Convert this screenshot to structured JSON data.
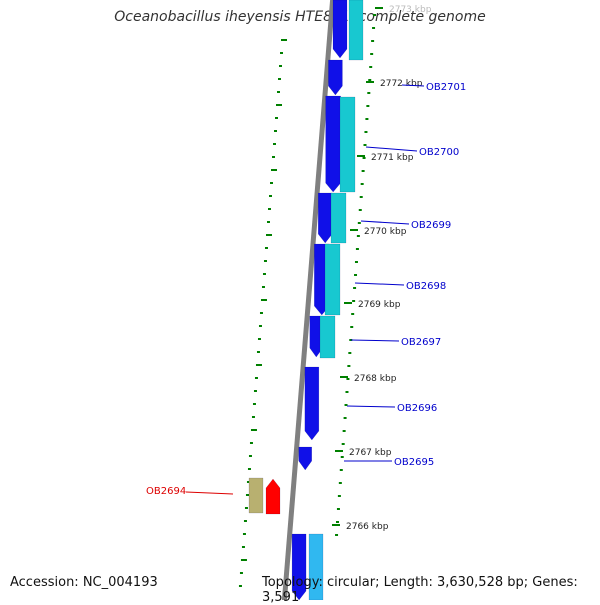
{
  "title": "Oceanobacillus iheyensis HTE831, complete genome",
  "accession": "Accession: NC_004193",
  "summary": "Topology: circular; Length: 3,630,528 bp; Genes: 3,591",
  "kbp_ticks": [
    "2773 kbp",
    "2772 kbp",
    "2771 kbp",
    "2770 kbp",
    "2769 kbp",
    "2768 kbp",
    "2767 kbp",
    "2766 kbp"
  ],
  "gene_labels": [
    "OB2701",
    "OB2700",
    "OB2699",
    "OB2698",
    "OB2697",
    "OB2696",
    "OB2695",
    "OB2694"
  ],
  "colors": {
    "backbone": "#808080",
    "cds_forward": "#1010e8",
    "cds_cyan": "#18c8d0",
    "cds_light_blue": "#30b8f0",
    "cds_red": "#ff0000",
    "cds_khaki": "#b8b070",
    "tick_green": "#008000",
    "label_blue": "#0000cc",
    "label_red": "#dd0000"
  }
}
